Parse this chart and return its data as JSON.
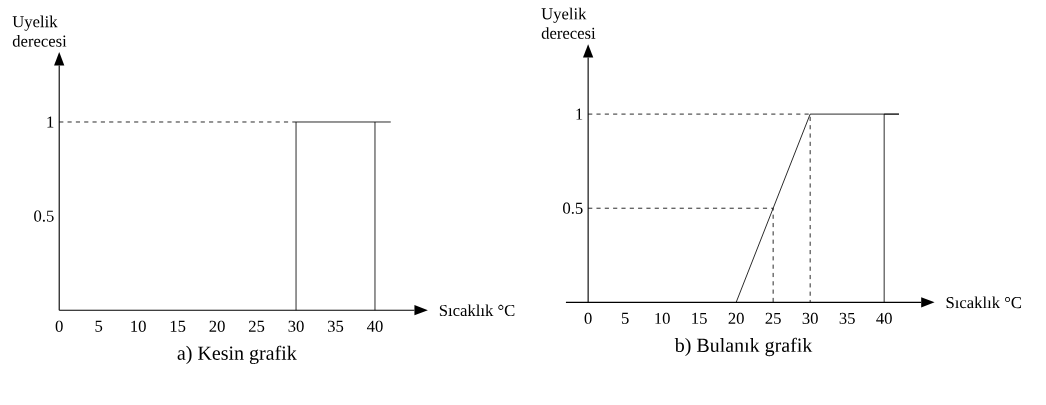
{
  "chart_data": [
    {
      "type": "line",
      "title": "a) Kesin grafik",
      "xlabel": "Sıcaklık °C",
      "ylabel": "Uyelik derecesi",
      "xlim": [
        0,
        45
      ],
      "ylim": [
        0,
        1.3
      ],
      "xticks": [
        0,
        5,
        10,
        15,
        20,
        25,
        30,
        35,
        40
      ],
      "yticks": [
        0.5,
        1
      ],
      "marker": "none",
      "line_style": "solid",
      "series": [
        {
          "color": "#000000",
          "x": [
            30,
            30,
            42
          ],
          "values": [
            0,
            1,
            1
          ]
        },
        {
          "color": "#000000",
          "x": [
            40,
            40
          ],
          "values": [
            0,
            1
          ]
        },
        {
          "color": "#000000",
          "x": [
            0,
            30
          ],
          "values": [
            1,
            1
          ],
          "line_style": "dashed"
        }
      ]
    },
    {
      "type": "line",
      "title": "b) Bulanık grafik",
      "xlabel": "Sıcaklık °C",
      "ylabel": "Uyelik derecesi",
      "xlim": [
        -3,
        45
      ],
      "ylim": [
        0,
        1.3
      ],
      "xticks": [
        0,
        5,
        10,
        15,
        20,
        25,
        30,
        35,
        40
      ],
      "yticks": [
        0.5,
        1
      ],
      "marker": "none",
      "line_style": "solid",
      "series": [
        {
          "color": "#000000",
          "x": [
            0,
            25,
            25
          ],
          "values": [
            0.5,
            0.5,
            0
          ],
          "line_style": "dashed"
        },
        {
          "color": "#000000",
          "x": [
            0,
            30,
            30
          ],
          "values": [
            1,
            1,
            0
          ],
          "line_style": "dashed"
        },
        {
          "color": "#000000",
          "x": [
            20,
            30,
            42,
            40,
            40
          ],
          "values": [
            0,
            1,
            1,
            1,
            0
          ]
        }
      ]
    }
  ]
}
